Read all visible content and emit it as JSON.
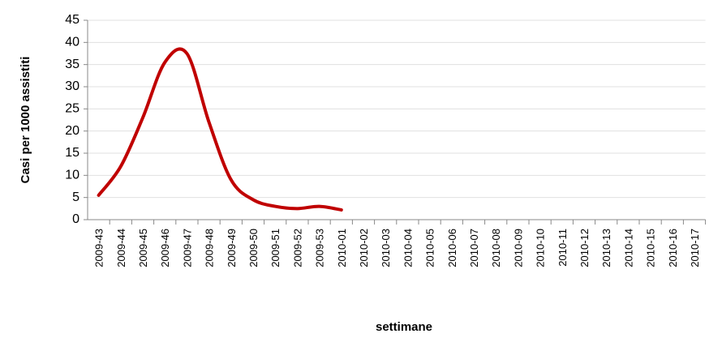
{
  "chart_data": {
    "type": "line",
    "x_label": "settimane",
    "y_label": "Casi per 1000 assistiti",
    "categories": [
      "2009-43",
      "2009-44",
      "2009-45",
      "2009-46",
      "2009-47",
      "2009-48",
      "2009-49",
      "2009-50",
      "2009-51",
      "2009-52",
      "2009-53",
      "2010-01",
      "2010-02",
      "2010-03",
      "2010-04",
      "2010-05",
      "2010-06",
      "2010-07",
      "2010-08",
      "2010-09",
      "2010-10",
      "2010-11",
      "2010-12",
      "2010-13",
      "2010-14",
      "2010-15",
      "2010-16",
      "2010-17"
    ],
    "series": [
      {
        "name": "Casi",
        "color": "#c00000",
        "values": [
          5.5,
          12,
          23,
          35.5,
          37.5,
          22,
          9,
          4.5,
          3,
          2.5,
          3,
          2.2,
          null,
          null,
          null,
          null,
          null,
          null,
          null,
          null,
          null,
          null,
          null,
          null,
          null,
          null,
          null,
          null
        ]
      }
    ],
    "ylim": [
      0,
      45
    ],
    "yticks": [
      0,
      5,
      10,
      15,
      20,
      25,
      30,
      35,
      40,
      45
    ],
    "grid": true
  }
}
